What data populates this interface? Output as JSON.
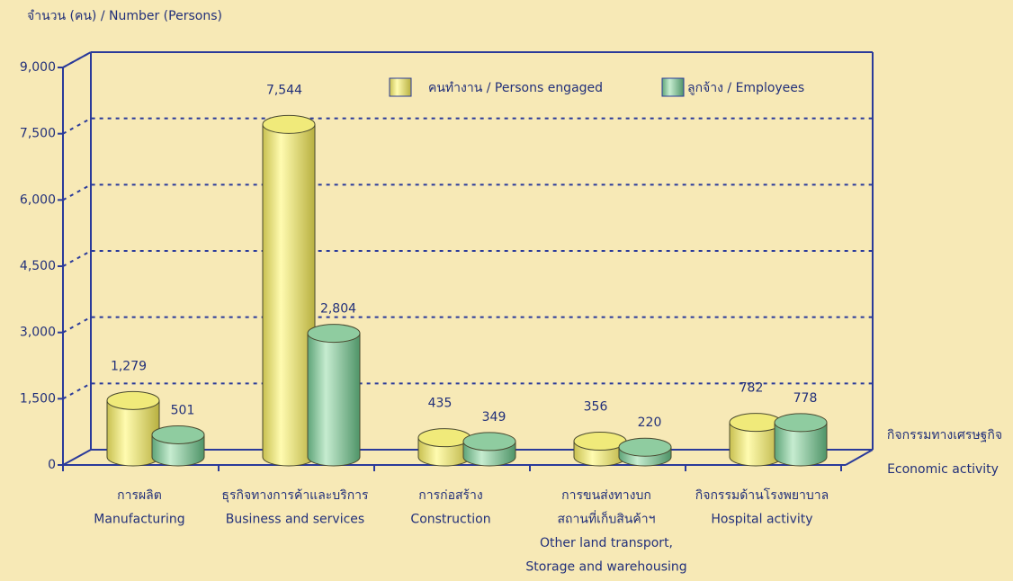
{
  "chart_data": {
    "type": "bar3d",
    "y_label": "จำนวน (คน) / Number  (Persons)",
    "x_label": [
      "กิจกรรมทางเศรษฐกิจ",
      "Economic activity"
    ],
    "categories": [
      [
        "การผลิต",
        "Manufacturing"
      ],
      [
        "ธุรกิจทางการค้าและบริการ",
        "Business and services"
      ],
      [
        "การก่อสร้าง",
        "Construction"
      ],
      [
        "การขนส่งทางบก",
        "สถานที่เก็บสินค้าฯ",
        "Other land transport,",
        "Storage and warehousing"
      ],
      [
        "กิจกรรมด้านโรงพยาบาล",
        "Hospital activity"
      ]
    ],
    "series": [
      {
        "name": "คนทำงาน  / Persons engaged",
        "color": "#f0ea7a",
        "label_color": "#555555",
        "values": [
          1279,
          7544,
          435,
          356,
          782
        ],
        "value_labels": [
          "1,279",
          "7,544",
          "435",
          "356",
          "782"
        ]
      },
      {
        "name": "ลูกจ้าง / Employees",
        "color": "#8fcca0",
        "label_color": "#e02020",
        "values": [
          501,
          2804,
          349,
          220,
          778
        ],
        "value_labels": [
          "501",
          "2,804",
          "349",
          "220",
          "778"
        ]
      }
    ],
    "ylim": [
      0,
      9000
    ],
    "yticks": [
      0,
      {
        "value": 1500,
        "label": "1,500"
      },
      {
        "value": 3000,
        "label": "3,000"
      },
      {
        "value": 4500,
        "label": "4,500"
      },
      {
        "value": 6000,
        "label": "6,000"
      },
      {
        "value": 7500,
        "label": "7,500"
      },
      {
        "value": 9000,
        "label": "9,000"
      }
    ],
    "grid": true,
    "legend": "top-right"
  }
}
